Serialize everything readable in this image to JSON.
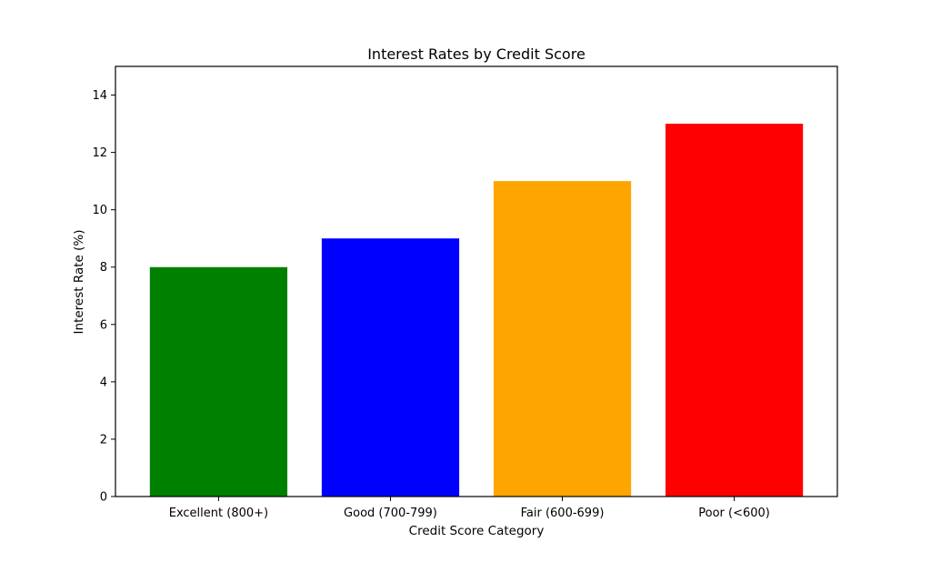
{
  "chart_data": {
    "type": "bar",
    "title": "Interest Rates by Credit Score",
    "xlabel": "Credit Score Category",
    "ylabel": "Interest Rate (%)",
    "categories": [
      "Excellent (800+)",
      "Good (700-799)",
      "Fair (600-699)",
      "Poor (<600)"
    ],
    "values": [
      8,
      9,
      11,
      13
    ],
    "colors": [
      "#008000",
      "#0000ff",
      "#ffa500",
      "#ff0000"
    ],
    "ylim": [
      0,
      15
    ],
    "yticks": [
      0,
      2,
      4,
      6,
      8,
      10,
      12,
      14
    ],
    "grid": false,
    "legend": "none"
  }
}
